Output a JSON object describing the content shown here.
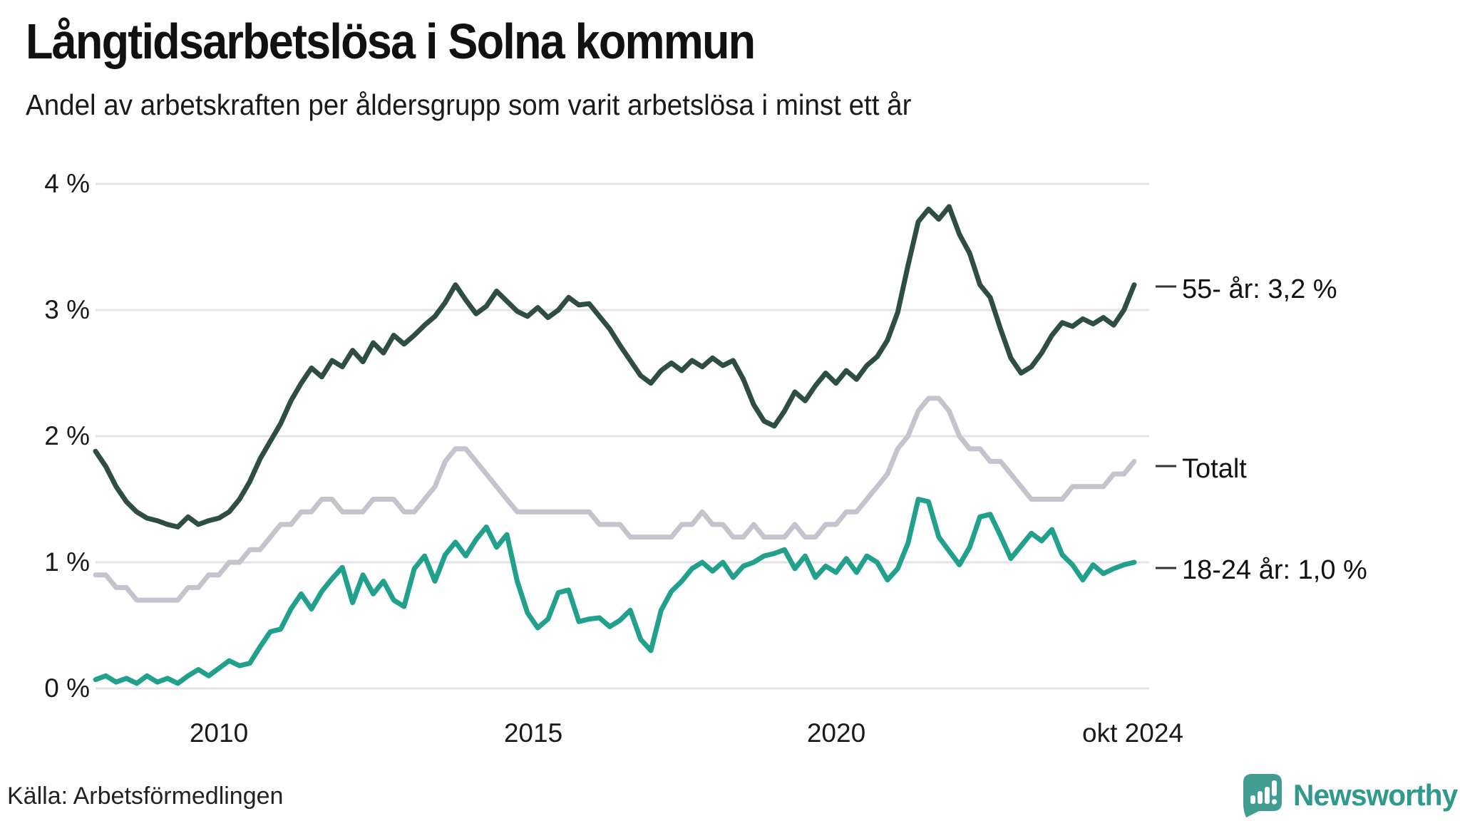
{
  "header": {
    "title": "Långtidsarbetslösa i Solna kommun",
    "subtitle": "Andel av arbetskraften per åldersgrupp som varit arbetslösa i minst ett år"
  },
  "source_label": "Källa: Arbetsförmedlingen",
  "branding": {
    "wordmark": "Newsworthy",
    "brand_color": "#2f998b",
    "icon_color": "#419d92"
  },
  "chart_data": {
    "type": "line",
    "title": "Långtidsarbetslösa i Solna kommun",
    "subtitle": "Andel av arbetskraften per åldersgrupp som varit arbetslösa i minst ett år",
    "x_unit": "decimal year, monthly series sampled every 2 months (jan 2008 - okt 2024)",
    "x_start": 2008.0,
    "x_step": 0.1666667,
    "x_end": 2024.8333,
    "ylim": [
      0,
      4
    ],
    "y_unit": "% av arbetskraften",
    "grid": true,
    "yticks": [
      "4 %",
      "3 %",
      "2 %",
      "1 %",
      "0 %"
    ],
    "xticks": [
      {
        "label": "2010",
        "year": 2010
      },
      {
        "label": "2015",
        "year": 2015
      },
      {
        "label": "2020",
        "year": 2020
      },
      {
        "label": "okt 2024",
        "year": 2024.79
      }
    ],
    "legend_position": "right-edge-labels",
    "series": [
      {
        "name": "55- år",
        "label": "55- år: 3,2 %",
        "color": "#2e4d44",
        "end_value": 3.2,
        "values": [
          1.88,
          1.76,
          1.6,
          1.48,
          1.4,
          1.35,
          1.33,
          1.3,
          1.28,
          1.36,
          1.3,
          1.33,
          1.35,
          1.4,
          1.5,
          1.64,
          1.82,
          1.96,
          2.1,
          2.28,
          2.42,
          2.54,
          2.47,
          2.6,
          2.55,
          2.68,
          2.59,
          2.74,
          2.66,
          2.8,
          2.73,
          2.8,
          2.88,
          2.95,
          3.06,
          3.2,
          3.08,
          2.97,
          3.03,
          3.15,
          3.07,
          2.99,
          2.95,
          3.02,
          2.94,
          3.0,
          3.1,
          3.04,
          3.05,
          2.95,
          2.85,
          2.72,
          2.6,
          2.48,
          2.42,
          2.52,
          2.58,
          2.52,
          2.6,
          2.55,
          2.62,
          2.56,
          2.6,
          2.45,
          2.25,
          2.12,
          2.08,
          2.2,
          2.35,
          2.28,
          2.4,
          2.5,
          2.42,
          2.52,
          2.45,
          2.56,
          2.63,
          2.76,
          2.98,
          3.35,
          3.7,
          3.8,
          3.72,
          3.82,
          3.6,
          3.45,
          3.2,
          3.1,
          2.85,
          2.62,
          2.5,
          2.55,
          2.66,
          2.8,
          2.9,
          2.87,
          2.93,
          2.89,
          2.94,
          2.88,
          3.0,
          3.2
        ]
      },
      {
        "name": "Totalt",
        "label": "Totalt",
        "color": "#c6c3ce",
        "end_value": 1.8,
        "values": [
          0.9,
          0.9,
          0.8,
          0.8,
          0.7,
          0.7,
          0.7,
          0.7,
          0.7,
          0.8,
          0.8,
          0.9,
          0.9,
          1.0,
          1.0,
          1.1,
          1.1,
          1.2,
          1.3,
          1.3,
          1.4,
          1.4,
          1.5,
          1.5,
          1.4,
          1.4,
          1.4,
          1.5,
          1.5,
          1.5,
          1.4,
          1.4,
          1.5,
          1.6,
          1.8,
          1.9,
          1.9,
          1.8,
          1.7,
          1.6,
          1.5,
          1.4,
          1.4,
          1.4,
          1.4,
          1.4,
          1.4,
          1.4,
          1.4,
          1.3,
          1.3,
          1.3,
          1.2,
          1.2,
          1.2,
          1.2,
          1.2,
          1.3,
          1.3,
          1.4,
          1.3,
          1.3,
          1.2,
          1.2,
          1.3,
          1.2,
          1.2,
          1.2,
          1.3,
          1.2,
          1.2,
          1.3,
          1.3,
          1.4,
          1.4,
          1.5,
          1.6,
          1.7,
          1.9,
          2.0,
          2.2,
          2.3,
          2.3,
          2.2,
          2.0,
          1.9,
          1.9,
          1.8,
          1.8,
          1.7,
          1.6,
          1.5,
          1.5,
          1.5,
          1.5,
          1.6,
          1.6,
          1.6,
          1.6,
          1.7,
          1.7,
          1.8
        ]
      },
      {
        "name": "18-24 år",
        "label": "18-24 år: 1,0 %",
        "color": "#21a08c",
        "end_value": 1.0,
        "values": [
          0.07,
          0.1,
          0.05,
          0.08,
          0.04,
          0.1,
          0.05,
          0.08,
          0.04,
          0.1,
          0.15,
          0.1,
          0.16,
          0.22,
          0.18,
          0.2,
          0.33,
          0.45,
          0.47,
          0.63,
          0.75,
          0.63,
          0.77,
          0.87,
          0.96,
          0.68,
          0.9,
          0.75,
          0.85,
          0.7,
          0.65,
          0.95,
          1.05,
          0.85,
          1.06,
          1.16,
          1.05,
          1.18,
          1.28,
          1.12,
          1.22,
          0.85,
          0.6,
          0.48,
          0.55,
          0.76,
          0.78,
          0.53,
          0.55,
          0.56,
          0.49,
          0.54,
          0.62,
          0.39,
          0.3,
          0.62,
          0.77,
          0.85,
          0.95,
          1.0,
          0.93,
          1.0,
          0.88,
          0.97,
          1.0,
          1.05,
          1.07,
          1.1,
          0.95,
          1.05,
          0.88,
          0.97,
          0.92,
          1.03,
          0.92,
          1.05,
          1.0,
          0.86,
          0.95,
          1.15,
          1.5,
          1.48,
          1.2,
          1.09,
          0.98,
          1.12,
          1.36,
          1.38,
          1.21,
          1.03,
          1.13,
          1.23,
          1.17,
          1.26,
          1.06,
          0.98,
          0.86,
          0.98,
          0.91,
          0.95,
          0.98,
          1.0
        ]
      }
    ]
  }
}
